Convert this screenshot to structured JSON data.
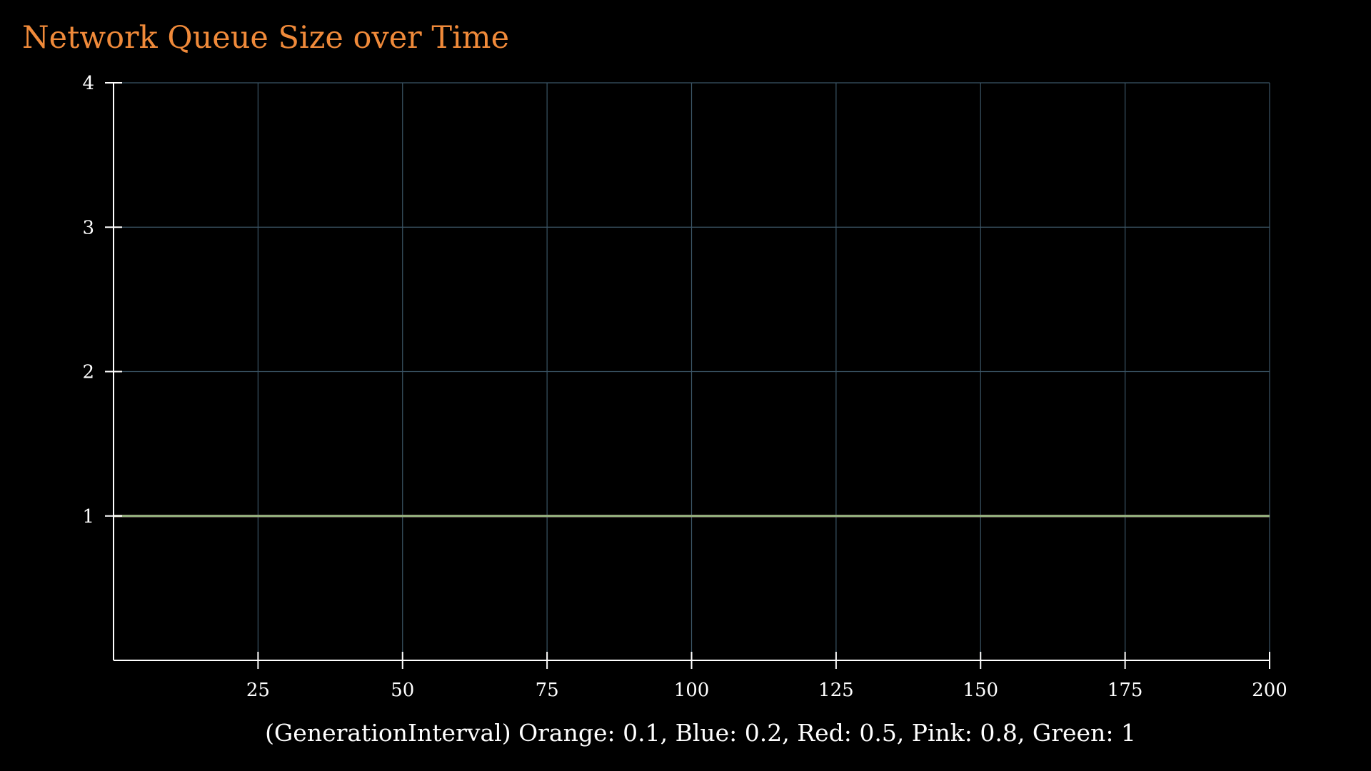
{
  "chart_data": {
    "type": "line",
    "title": "Network Queue Size over Time",
    "xlabel": "(GenerationInterval) Orange: 0.1, Blue: 0.2, Red: 0.5, Pink: 0.8, Green: 1",
    "ylabel": "",
    "xlim": [
      0,
      200
    ],
    "ylim": [
      0,
      4
    ],
    "x_ticks": [
      25,
      50,
      75,
      100,
      125,
      150,
      175,
      200
    ],
    "y_ticks": [
      1,
      2,
      3,
      4
    ],
    "grid": true,
    "series": [
      {
        "color": "#f08a3a",
        "x": [
          0,
          200
        ],
        "y": [
          1,
          1
        ]
      },
      {
        "color": "#4f8fd6",
        "x": [
          0,
          200
        ],
        "y": [
          1,
          1
        ]
      },
      {
        "color": "#e8545a",
        "x": [
          0,
          200
        ],
        "y": [
          1,
          1
        ]
      },
      {
        "color": "#e98bc4",
        "x": [
          0,
          200
        ],
        "y": [
          1,
          1
        ]
      },
      {
        "color": "#8fb07a",
        "x": [
          0,
          200
        ],
        "y": [
          1,
          1
        ]
      }
    ]
  },
  "colors": {
    "background": "#000000",
    "title": "#f08a3a",
    "axis": "#ffffff",
    "grid": "#3b5566"
  }
}
